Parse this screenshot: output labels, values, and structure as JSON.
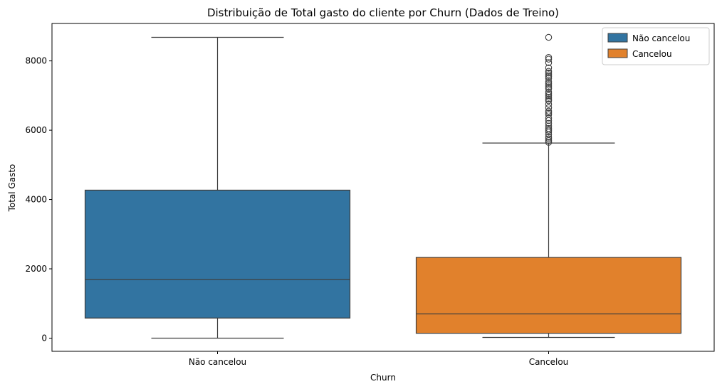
{
  "chart_data": {
    "type": "box",
    "title": "Distribuição de Total gasto do cliente por Churn (Dados de Treino)",
    "xlabel": "Churn",
    "ylabel": "Total Gasto",
    "categories": [
      "Não cancelou",
      "Cancelou"
    ],
    "ylim": [
      -380,
      9080
    ],
    "yticks": [
      0,
      2000,
      4000,
      6000,
      8000
    ],
    "grid": false,
    "legend": {
      "placement": "top-right",
      "entries": [
        {
          "label": "Não cancelou",
          "color": "#3274a1"
        },
        {
          "label": "Cancelou",
          "color": "#e1812c"
        }
      ]
    },
    "series": [
      {
        "name": "Não cancelou",
        "color": "#3274a1",
        "whisker_low": 0,
        "q1": 580,
        "median": 1690,
        "q3": 4270,
        "whisker_high": 8680,
        "outliers": []
      },
      {
        "name": "Cancelou",
        "color": "#e1812c",
        "whisker_low": 20,
        "q1": 140,
        "median": 700,
        "q3": 2330,
        "whisker_high": 5630,
        "outliers": [
          5650,
          5700,
          5750,
          5800,
          5880,
          5950,
          6000,
          6050,
          6120,
          6200,
          6280,
          6350,
          6450,
          6500,
          6550,
          6650,
          6750,
          6850,
          6900,
          6950,
          7000,
          7050,
          7100,
          7200,
          7250,
          7300,
          7350,
          7400,
          7500,
          7550,
          7600,
          7650,
          7700,
          7800,
          7950,
          8050,
          8100,
          8680
        ]
      }
    ]
  }
}
